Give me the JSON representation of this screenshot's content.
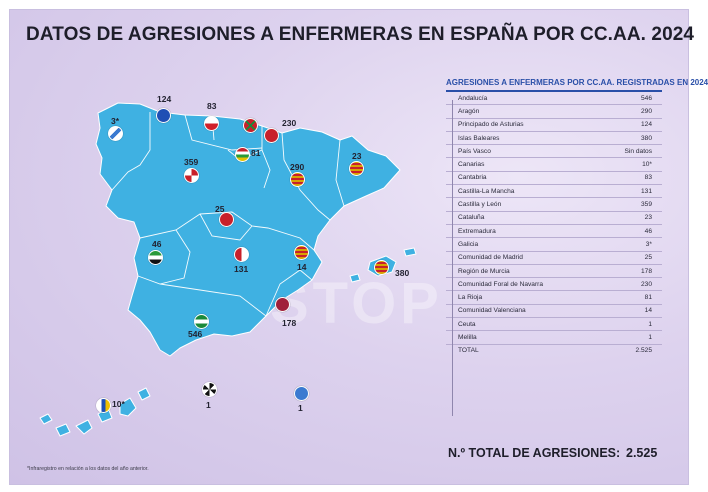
{
  "title": "DATOS DE AGRESIONES A ENFERMERAS EN ESPAÑA POR CC.AA. 2024",
  "watermark": "STOP",
  "table": {
    "heading": "AGRESIONES A ENFERMERAS POR CC.AA. REGISTRADAS EN 2024",
    "rows": [
      {
        "name": "Andalucía",
        "value": "546"
      },
      {
        "name": "Aragón",
        "value": "290"
      },
      {
        "name": "Principado de Asturias",
        "value": "124"
      },
      {
        "name": "Islas Baleares",
        "value": "380"
      },
      {
        "name": "País Vasco",
        "value": "Sin datos"
      },
      {
        "name": "Canarias",
        "value": "10*"
      },
      {
        "name": "Cantabria",
        "value": "83"
      },
      {
        "name": "Castilla-La Mancha",
        "value": "131"
      },
      {
        "name": "Castilla y León",
        "value": "359"
      },
      {
        "name": "Cataluña",
        "value": "23"
      },
      {
        "name": "Extremadura",
        "value": "46"
      },
      {
        "name": "Galicia",
        "value": "3*"
      },
      {
        "name": "Comunidad de Madrid",
        "value": "25"
      },
      {
        "name": "Región de Murcia",
        "value": "178"
      },
      {
        "name": "Comunidad Foral de Navarra",
        "value": "230"
      },
      {
        "name": "La Rioja",
        "value": "81"
      },
      {
        "name": "Comunidad Valenciana",
        "value": "14"
      },
      {
        "name": "Ceuta",
        "value": "1"
      },
      {
        "name": "Melilla",
        "value": "1"
      },
      {
        "name": "TOTAL",
        "value": "2.525"
      }
    ]
  },
  "total": {
    "label": "N.º TOTAL DE AGRESIONES:",
    "value": "2.525"
  },
  "footnote": "*Infraregistro en relación a los datos del año anterior.",
  "map_labels": {
    "galicia": "3*",
    "asturias": "124",
    "cantabria": "83",
    "navarra": "230",
    "rioja": "81",
    "castilla_leon": "359",
    "aragon": "290",
    "cataluna": "23",
    "madrid": "25",
    "extremadura": "46",
    "castilla_mancha": "131",
    "valenciana": "14",
    "baleares": "380",
    "andalucia": "546",
    "murcia": "178",
    "canarias": "10*",
    "ceuta": "1",
    "melilla": "1"
  },
  "colors": {
    "map_fill": "#3fb1e2",
    "map_border": "#ffffff",
    "accent": "#2a4fa8",
    "background": "#d9cdeb"
  }
}
